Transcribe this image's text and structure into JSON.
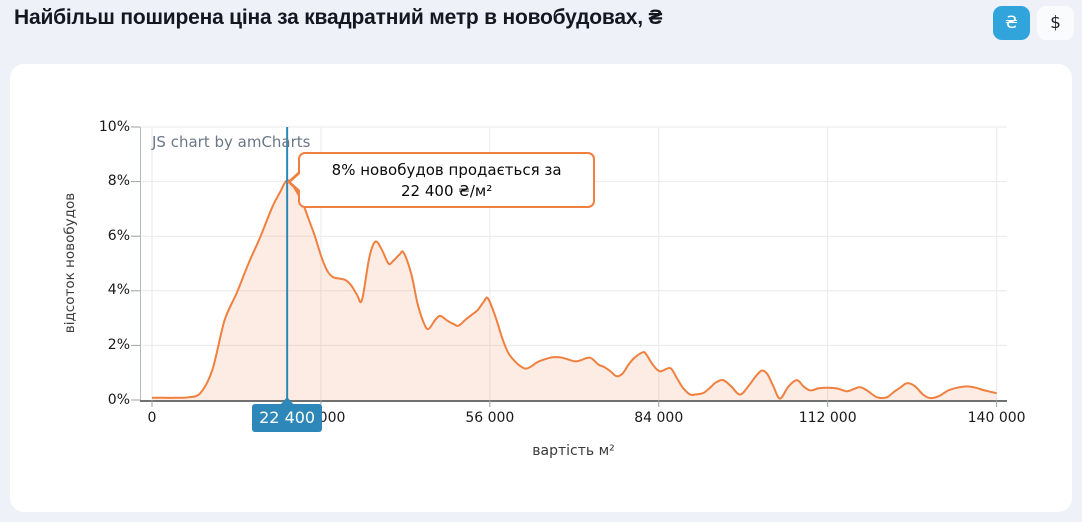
{
  "header": {
    "title": "Найбільш поширена ціна за квадратний метр в новобудовах, ₴",
    "currency_toggle": {
      "hryvnia_label": "₴",
      "dollar_label": "$",
      "active": "hryvnia"
    }
  },
  "colors": {
    "page_background": "#eff1f8",
    "card_background": "#ffffff",
    "active_button_blue": "#31a4dc",
    "marker_blue": "#2d88b9",
    "line_orange": "#f08040",
    "grid_gray": "#e9e9e9",
    "axis_dark": "#707070",
    "axis_light": "#b4b9c0",
    "tick_gray": "#9aa0a6",
    "watermark_gray": "#6b7787"
  },
  "chart_data": {
    "type": "area",
    "title": "",
    "xlabel": "вартість м²",
    "ylabel": "відсоток новобудов",
    "xlim": [
      0,
      140000
    ],
    "ylim": [
      0,
      10
    ],
    "grid": true,
    "legend": "none",
    "watermark": "JS chart by amCharts",
    "x_ticks": {
      "values": [
        0,
        28000,
        56000,
        84000,
        112000,
        140000
      ],
      "labels": [
        "0",
        "28 000",
        "56 000",
        "84 000",
        "112 000",
        "140 000"
      ]
    },
    "y_ticks": {
      "values": [
        0,
        2,
        4,
        6,
        8,
        10
      ],
      "labels": [
        "0%",
        "2%",
        "4%",
        "6%",
        "8%",
        "10%"
      ]
    },
    "marker": {
      "value": 22400,
      "percent": 8.05,
      "axis_badge": "22 400",
      "tooltip_line1": "8% новобудов продається за",
      "tooltip_line2": "22 400 ₴/м²"
    },
    "series": [
      {
        "name": "відсоток новобудов",
        "color": "#f08040",
        "x": [
          0,
          2000,
          4000,
          6000,
          8000,
          10000,
          12000,
          14000,
          16000,
          18000,
          20000,
          21200,
          22400,
          23500,
          25000,
          26000,
          27000,
          28000,
          29000,
          30000,
          31000,
          32000,
          33000,
          34000,
          34800,
          36000,
          37000,
          38000,
          39200,
          40000,
          41000,
          41700,
          43000,
          44000,
          45000,
          45800,
          47000,
          47800,
          49000,
          50000,
          50800,
          52000,
          53000,
          54000,
          55000,
          55700,
          57000,
          58000,
          59000,
          60000,
          61000,
          62000,
          63000,
          64000,
          66000,
          67000,
          68000,
          70000,
          71000,
          72600,
          74000,
          75000,
          76000,
          77000,
          78000,
          79000,
          80000,
          81400,
          82000,
          83000,
          84200,
          85900,
          87000,
          88000,
          89200,
          90000,
          91400,
          92500,
          93500,
          94700,
          96000,
          97500,
          99000,
          100000,
          101100,
          102000,
          103000,
          104100,
          105500,
          106900,
          108000,
          109100,
          110500,
          112000,
          113600,
          115200,
          116300,
          117400,
          118500,
          120200,
          121800,
          123000,
          124000,
          125200,
          126500,
          127800,
          129000,
          130500,
          132000,
          133500,
          135100,
          136500,
          138000,
          139000,
          140000
        ],
        "y": [
          0.08,
          0.08,
          0.08,
          0.1,
          0.25,
          1.1,
          2.9,
          3.9,
          5.0,
          6.0,
          7.1,
          7.6,
          8.05,
          7.8,
          7.2,
          6.6,
          6.0,
          5.3,
          4.75,
          4.5,
          4.45,
          4.4,
          4.2,
          3.85,
          3.66,
          5.2,
          5.8,
          5.55,
          5.0,
          5.1,
          5.32,
          5.4,
          4.6,
          3.55,
          2.85,
          2.6,
          2.95,
          3.08,
          2.9,
          2.78,
          2.72,
          2.95,
          3.12,
          3.3,
          3.6,
          3.72,
          3.0,
          2.3,
          1.75,
          1.45,
          1.25,
          1.15,
          1.25,
          1.4,
          1.55,
          1.57,
          1.55,
          1.42,
          1.45,
          1.55,
          1.3,
          1.2,
          1.05,
          0.87,
          0.97,
          1.3,
          1.55,
          1.75,
          1.65,
          1.3,
          1.05,
          1.17,
          0.8,
          0.45,
          0.2,
          0.2,
          0.26,
          0.45,
          0.65,
          0.73,
          0.5,
          0.2,
          0.55,
          0.85,
          1.08,
          0.95,
          0.5,
          0.05,
          0.5,
          0.73,
          0.5,
          0.35,
          0.43,
          0.45,
          0.42,
          0.32,
          0.4,
          0.47,
          0.35,
          0.1,
          0.1,
          0.3,
          0.45,
          0.62,
          0.5,
          0.2,
          0.07,
          0.15,
          0.35,
          0.45,
          0.5,
          0.45,
          0.35,
          0.3,
          0.25
        ]
      }
    ]
  }
}
